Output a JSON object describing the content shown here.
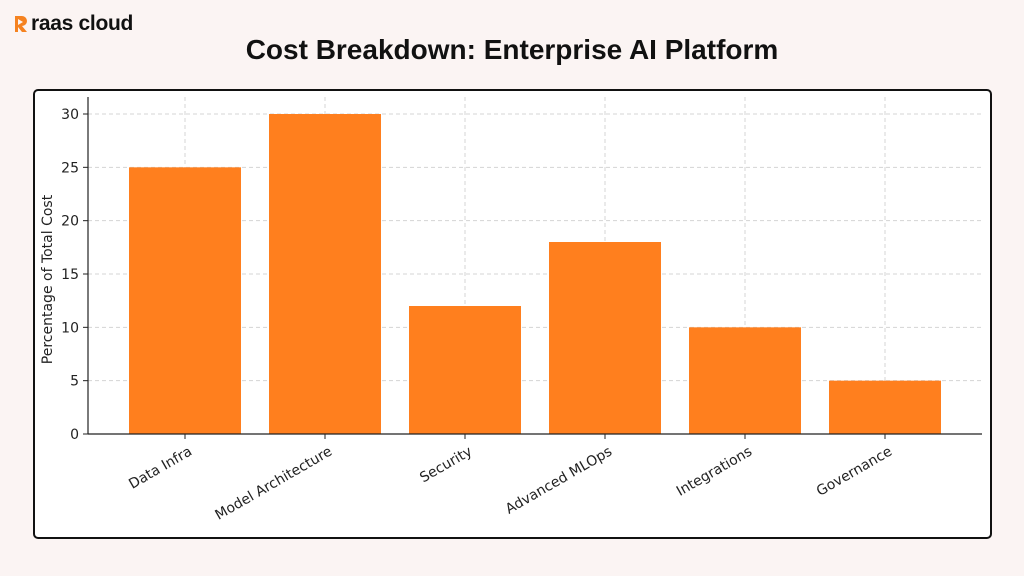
{
  "brand": {
    "name": "raas cloud",
    "accent": "#f58220"
  },
  "chart_data": {
    "type": "bar",
    "title": "Cost Breakdown: Enterprise AI Platform",
    "categories": [
      "Data Infra",
      "Model Architecture",
      "Security",
      "Advanced MLOps",
      "Integrations",
      "Governance"
    ],
    "values": [
      25,
      30,
      12,
      18,
      10,
      5
    ],
    "xlabel": "",
    "ylabel": "Percentage of Total Cost",
    "ylim": [
      0,
      31.5
    ],
    "yticks": [
      0,
      5,
      10,
      15,
      20,
      25,
      30
    ],
    "grid": true,
    "bar_color": "#ff7f1e"
  }
}
